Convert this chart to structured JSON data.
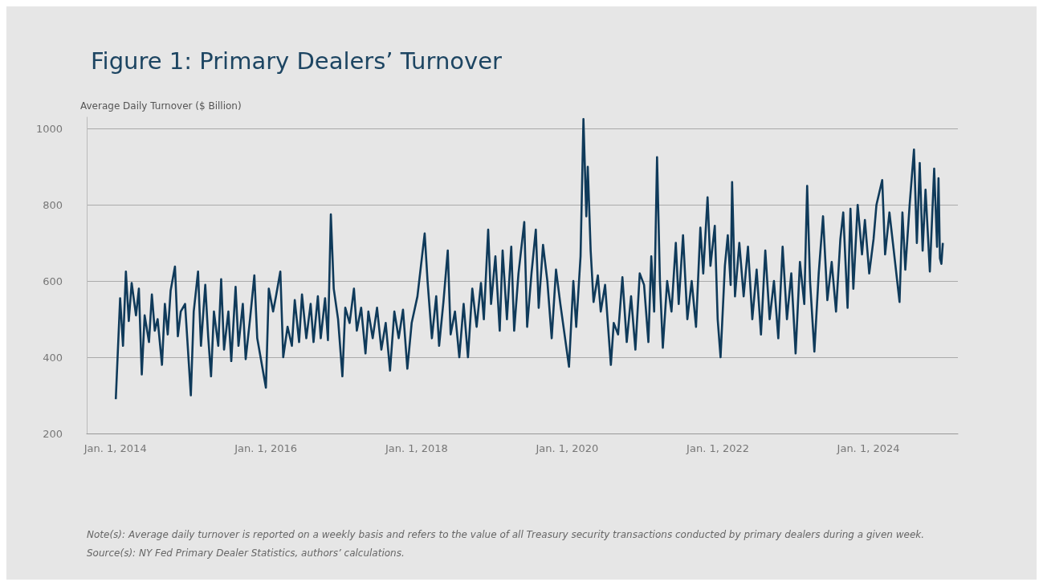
{
  "chart_data": {
    "type": "line",
    "title": "Figure 1: Primary Dealers’ Turnover",
    "ylabel": "Average Daily Turnover ($ Billion)",
    "annotations": [
      "Note(s): Average daily turnover is reported on a weekly basis and refers to the value of all Treasury security transactions conducted by primary dealers during a given week.",
      "Source(s): NY Fed Primary Dealer Statistics, authors’ calculations."
    ],
    "x": [
      "2014-01-03",
      "2014-01-24",
      "2014-02-07",
      "2014-02-21",
      "2014-03-07",
      "2014-03-21",
      "2014-04-11",
      "2014-04-25",
      "2014-05-09",
      "2014-05-23",
      "2014-06-13",
      "2014-06-27",
      "2014-07-11",
      "2014-07-25",
      "2014-08-15",
      "2014-08-29",
      "2014-09-12",
      "2014-09-26",
      "2014-10-17",
      "2014-10-31",
      "2014-11-14",
      "2014-12-05",
      "2015-01-02",
      "2015-01-16",
      "2015-02-06",
      "2015-02-20",
      "2015-03-13",
      "2015-03-27",
      "2015-04-10",
      "2015-04-24",
      "2015-05-15",
      "2015-05-29",
      "2015-06-12",
      "2015-07-03",
      "2015-07-17",
      "2015-08-07",
      "2015-08-21",
      "2015-09-11",
      "2015-09-25",
      "2015-10-16",
      "2015-11-06",
      "2015-11-20",
      "2016-01-01",
      "2016-01-15",
      "2016-02-05",
      "2016-02-19",
      "2016-03-11",
      "2016-03-25",
      "2016-04-15",
      "2016-05-06",
      "2016-05-20",
      "2016-06-10",
      "2016-06-24",
      "2016-07-15",
      "2016-08-05",
      "2016-08-19",
      "2016-09-09",
      "2016-09-23",
      "2016-10-14",
      "2016-10-28",
      "2016-11-11",
      "2016-11-25",
      "2016-12-16",
      "2017-01-06",
      "2017-01-20",
      "2017-02-10",
      "2017-03-03",
      "2017-03-17",
      "2017-04-07",
      "2017-04-28",
      "2017-05-12",
      "2017-06-02",
      "2017-06-23",
      "2017-07-14",
      "2017-08-04",
      "2017-08-25",
      "2017-09-15",
      "2017-10-06",
      "2017-10-27",
      "2017-11-17",
      "2017-12-08",
      "2018-01-05",
      "2018-02-09",
      "2018-02-23",
      "2018-03-16",
      "2018-04-06",
      "2018-04-20",
      "2018-05-11",
      "2018-06-01",
      "2018-06-15",
      "2018-07-06",
      "2018-07-27",
      "2018-08-17",
      "2018-09-07",
      "2018-09-28",
      "2018-10-19",
      "2018-11-09",
      "2018-11-23",
      "2018-12-14",
      "2018-12-28",
      "2019-01-18",
      "2019-02-08",
      "2019-02-22",
      "2019-03-15",
      "2019-04-05",
      "2019-04-19",
      "2019-05-10",
      "2019-06-07",
      "2019-06-21",
      "2019-07-12",
      "2019-08-02",
      "2019-08-16",
      "2019-09-06",
      "2019-09-27",
      "2019-10-18",
      "2019-11-08",
      "2019-11-29",
      "2020-01-10",
      "2020-01-31",
      "2020-02-14",
      "2020-03-06",
      "2020-03-20",
      "2020-04-03",
      "2020-04-10",
      "2020-04-24",
      "2020-05-08",
      "2020-05-29",
      "2020-06-12",
      "2020-07-03",
      "2020-07-31",
      "2020-08-14",
      "2020-09-04",
      "2020-09-25",
      "2020-10-16",
      "2020-11-06",
      "2020-11-27",
      "2020-12-18",
      "2021-01-08",
      "2021-01-29",
      "2021-02-12",
      "2021-02-26",
      "2021-03-12",
      "2021-03-26",
      "2021-04-09",
      "2021-04-30",
      "2021-05-21",
      "2021-06-11",
      "2021-06-25",
      "2021-07-16",
      "2021-08-06",
      "2021-08-27",
      "2021-09-17",
      "2021-10-08",
      "2021-10-22",
      "2021-11-12",
      "2021-11-26",
      "2021-12-17",
      "2021-12-31",
      "2022-01-14",
      "2022-02-04",
      "2022-02-18",
      "2022-03-04",
      "2022-03-11",
      "2022-03-25",
      "2022-04-15",
      "2022-05-06",
      "2022-05-27",
      "2022-06-17",
      "2022-07-08",
      "2022-07-29",
      "2022-08-19",
      "2022-09-09",
      "2022-09-30",
      "2022-10-21",
      "2022-11-11",
      "2022-12-02",
      "2022-12-23",
      "2023-01-13",
      "2023-02-03",
      "2023-02-24",
      "2023-03-10",
      "2023-03-24",
      "2023-04-14",
      "2023-05-05",
      "2023-05-26",
      "2023-06-16",
      "2023-07-07",
      "2023-07-28",
      "2023-08-18",
      "2023-09-01",
      "2023-09-22",
      "2023-10-06",
      "2023-10-20",
      "2023-11-10",
      "2023-12-01",
      "2023-12-15",
      "2024-01-05",
      "2024-01-26",
      "2024-02-09",
      "2024-03-08",
      "2024-03-22",
      "2024-04-12",
      "2024-05-03",
      "2024-05-31",
      "2024-06-14",
      "2024-06-28",
      "2024-07-19",
      "2024-08-09",
      "2024-08-23",
      "2024-09-06",
      "2024-09-20",
      "2024-10-04",
      "2024-10-25",
      "2024-11-15",
      "2024-11-29",
      "2024-12-06",
      "2024-12-13",
      "2024-12-20",
      "2024-12-27"
    ],
    "series": [
      {
        "color": "#0f3a5a",
        "values": [
          290,
          555,
          430,
          625,
          495,
          595,
          510,
          580,
          355,
          510,
          440,
          565,
          470,
          500,
          380,
          540,
          460,
          575,
          638,
          455,
          520,
          540,
          300,
          520,
          625,
          430,
          590,
          455,
          350,
          520,
          430,
          605,
          420,
          520,
          390,
          585,
          430,
          540,
          395,
          500,
          615,
          450,
          320,
          580,
          520,
          560,
          625,
          400,
          480,
          430,
          550,
          440,
          565,
          450,
          540,
          440,
          560,
          450,
          555,
          445,
          775,
          580,
          500,
          350,
          530,
          490,
          580,
          470,
          530,
          410,
          520,
          450,
          530,
          420,
          490,
          365,
          520,
          450,
          525,
          370,
          490,
          560,
          725,
          600,
          450,
          560,
          430,
          545,
          680,
          460,
          520,
          400,
          540,
          400,
          580,
          480,
          595,
          500,
          735,
          540,
          665,
          470,
          680,
          500,
          690,
          470,
          620,
          755,
          480,
          620,
          735,
          530,
          695,
          600,
          450,
          630,
          540,
          375,
          600,
          480,
          665,
          1025,
          770,
          900,
          680,
          545,
          615,
          520,
          590,
          380,
          490,
          460,
          610,
          440,
          560,
          420,
          620,
          590,
          440,
          665,
          520,
          925,
          600,
          425,
          600,
          520,
          700,
          540,
          720,
          500,
          600,
          480,
          740,
          620,
          820,
          640,
          745,
          500,
          400,
          640,
          720,
          590,
          860,
          560,
          700,
          560,
          690,
          500,
          630,
          460,
          680,
          500,
          600,
          450,
          690,
          500,
          620,
          410,
          650,
          540,
          850,
          600,
          415,
          620,
          770,
          550,
          650,
          520,
          710,
          780,
          530,
          790,
          580,
          800,
          670,
          760,
          620,
          710,
          800,
          865,
          670,
          780,
          680,
          545,
          780,
          630,
          800,
          945,
          700,
          910,
          680,
          840,
          625,
          895,
          690,
          870,
          660,
          645,
          700
        ]
      }
    ],
    "xlim": [
      "2013-08-15",
      "2025-03-10"
    ],
    "xticks": [
      {
        "value": "2014-01-01",
        "label": "Jan. 1, 2014"
      },
      {
        "value": "2016-01-01",
        "label": "Jan. 1, 2016"
      },
      {
        "value": "2018-01-01",
        "label": "Jan. 1, 2018"
      },
      {
        "value": "2020-01-01",
        "label": "Jan. 1, 2020"
      },
      {
        "value": "2022-01-01",
        "label": "Jan. 1, 2022"
      },
      {
        "value": "2024-01-01",
        "label": "Jan. 1, 2024"
      }
    ],
    "ylim": [
      200,
      1030
    ],
    "yticks": [
      200,
      400,
      600,
      800,
      1000
    ],
    "grid": "y",
    "marker": "none",
    "line_style": "solid"
  }
}
